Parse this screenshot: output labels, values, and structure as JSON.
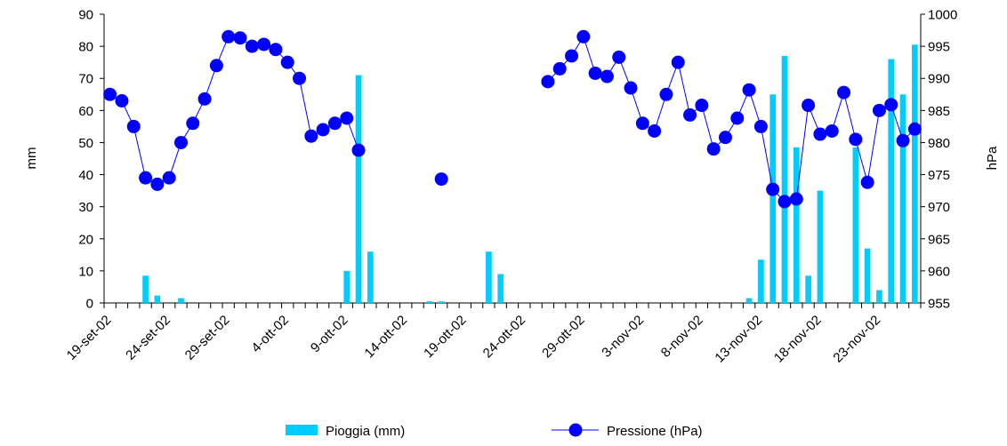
{
  "chart_data": {
    "type": "bar",
    "xlabel": "",
    "ylabel": "mm",
    "y2label": "hPa",
    "ylim": [
      0,
      90
    ],
    "y2lim": [
      955,
      1000
    ],
    "yticks": [
      "0",
      "10",
      "20",
      "30",
      "40",
      "50",
      "60",
      "70",
      "80",
      "90"
    ],
    "y2ticks": [
      "955",
      "960",
      "965",
      "970",
      "975",
      "980",
      "985",
      "990",
      "995",
      "1000"
    ],
    "xtick_labels": [
      "19-set-02",
      "24-set-02",
      "29-set-02",
      "4-ott-02",
      "9-ott-02",
      "14-ott-02",
      "19-ott-02",
      "24-ott-02",
      "29-ott-02",
      "3-nov-02",
      "8-nov-02",
      "13-nov-02",
      "18-nov-02",
      "23-nov-02"
    ],
    "grid": false,
    "legend_placement": "bottom",
    "colors": {
      "rain": "#00ccff",
      "pressure": "#0000ff"
    },
    "series": [
      {
        "name": "Pioggia (mm)",
        "kind": "bar",
        "axis": "left",
        "points": [
          {
            "day": 3,
            "value": 8.5
          },
          {
            "day": 4,
            "value": 2.3
          },
          {
            "day": 6,
            "value": 1.5
          },
          {
            "day": 20,
            "value": 10
          },
          {
            "day": 21,
            "value": 71
          },
          {
            "day": 22,
            "value": 16
          },
          {
            "day": 27,
            "value": 0.5
          },
          {
            "day": 28,
            "value": 0.5
          },
          {
            "day": 32,
            "value": 16
          },
          {
            "day": 33,
            "value": 9
          },
          {
            "day": 54,
            "value": 1.5
          },
          {
            "day": 55,
            "value": 13.5
          },
          {
            "day": 56,
            "value": 65
          },
          {
            "day": 57,
            "value": 77
          },
          {
            "day": 58,
            "value": 48.5
          },
          {
            "day": 59,
            "value": 8.5
          },
          {
            "day": 60,
            "value": 35
          },
          {
            "day": 63,
            "value": 48.5
          },
          {
            "day": 64,
            "value": 17
          },
          {
            "day": 65,
            "value": 4
          },
          {
            "day": 66,
            "value": 76
          },
          {
            "day": 67,
            "value": 65
          },
          {
            "day": 68,
            "value": 80.5
          }
        ]
      },
      {
        "name": "Pressione (hPa)",
        "kind": "line",
        "axis": "right",
        "points": [
          {
            "day": 0,
            "value": 987.5
          },
          {
            "day": 1,
            "value": 986.5
          },
          {
            "day": 2,
            "value": 982.5
          },
          {
            "day": 3,
            "value": 974.5
          },
          {
            "day": 4,
            "value": 973.5
          },
          {
            "day": 5,
            "value": 974.5
          },
          {
            "day": 6,
            "value": 980
          },
          {
            "day": 7,
            "value": 983
          },
          {
            "day": 8,
            "value": 986.8
          },
          {
            "day": 9,
            "value": 992
          },
          {
            "day": 10,
            "value": 996.5
          },
          {
            "day": 11,
            "value": 996.3
          },
          {
            "day": 12,
            "value": 995
          },
          {
            "day": 13,
            "value": 995.3
          },
          {
            "day": 14,
            "value": 994.5
          },
          {
            "day": 15,
            "value": 992.5
          },
          {
            "day": 16,
            "value": 990
          },
          {
            "day": 17,
            "value": 981
          },
          {
            "day": 18,
            "value": 982
          },
          {
            "day": 19,
            "value": 983
          },
          {
            "day": 20,
            "value": 983.8
          },
          {
            "day": 21,
            "value": 978.8
          },
          {
            "day": 28,
            "value": 974.3
          },
          {
            "day": 37,
            "value": 989.5
          },
          {
            "day": 38,
            "value": 991.5
          },
          {
            "day": 39,
            "value": 993.5
          },
          {
            "day": 40,
            "value": 996.5
          },
          {
            "day": 41,
            "value": 990.8
          },
          {
            "day": 42,
            "value": 990.3
          },
          {
            "day": 43,
            "value": 993.3
          },
          {
            "day": 44,
            "value": 988.5
          },
          {
            "day": 45,
            "value": 983
          },
          {
            "day": 46,
            "value": 981.8
          },
          {
            "day": 47,
            "value": 987.5
          },
          {
            "day": 48,
            "value": 992.5
          },
          {
            "day": 49,
            "value": 984.3
          },
          {
            "day": 50,
            "value": 985.8
          },
          {
            "day": 51,
            "value": 979
          },
          {
            "day": 52,
            "value": 980.8
          },
          {
            "day": 53,
            "value": 983.8
          },
          {
            "day": 54,
            "value": 988.2
          },
          {
            "day": 55,
            "value": 982.5
          },
          {
            "day": 56,
            "value": 972.7
          },
          {
            "day": 57,
            "value": 970.8
          },
          {
            "day": 58,
            "value": 971.2
          },
          {
            "day": 59,
            "value": 985.8
          },
          {
            "day": 60,
            "value": 981.3
          },
          {
            "day": 61,
            "value": 981.8
          },
          {
            "day": 62,
            "value": 987.8
          },
          {
            "day": 63,
            "value": 980.5
          },
          {
            "day": 64,
            "value": 973.8
          },
          {
            "day": 65,
            "value": 985
          },
          {
            "day": 66,
            "value": 985.9
          },
          {
            "day": 67,
            "value": 980.3
          },
          {
            "day": 68,
            "value": 982.1
          }
        ]
      }
    ]
  },
  "legend": {
    "rain_label": "Pioggia (mm)",
    "pressure_label": "Pressione (hPa)"
  }
}
